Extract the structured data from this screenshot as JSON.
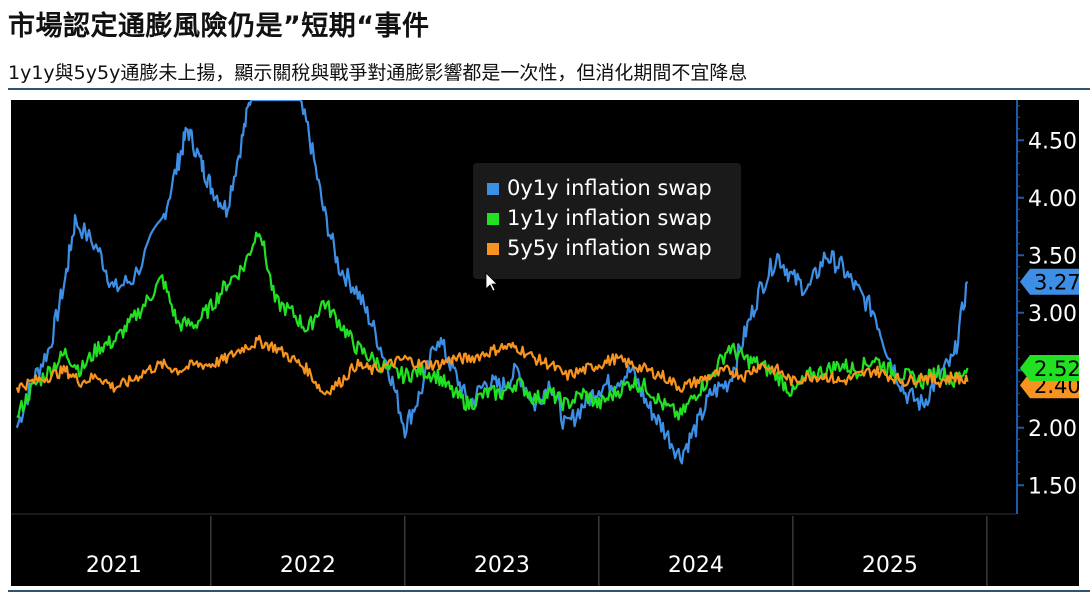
{
  "header": {
    "title": "市場認定通膨風險仍是”短期“事件",
    "subtitle": "1y1y與5y5y通膨未上揚，顯示關稅與戰爭對通膨影響都是一次性，但消化期間不宜降息"
  },
  "colors": {
    "background": "#000000",
    "axis": "#1e5aa8",
    "text": "#ffffff",
    "legend_bg": "#1a1a1a"
  },
  "chart_data": {
    "type": "line",
    "title": "",
    "xlabel": "",
    "ylabel": "",
    "x_tick_labels": [
      "2021",
      "2022",
      "2023",
      "2024",
      "2025"
    ],
    "y_ticks": [
      "1.50",
      "2.00",
      "2.50",
      "3.00",
      "3.50",
      "4.00",
      "4.50"
    ],
    "ylim": [
      1.25,
      4.85
    ],
    "grid": false,
    "legend_position": "top-center",
    "series": [
      {
        "name": "0y1y inflation swap",
        "color": "#3d8fe6",
        "last_label": "3.27",
        "points": [
          [
            2021.0,
            2.0
          ],
          [
            2021.08,
            2.4
          ],
          [
            2021.17,
            2.7
          ],
          [
            2021.25,
            3.3
          ],
          [
            2021.3,
            3.8
          ],
          [
            2021.42,
            3.55
          ],
          [
            2021.5,
            3.2
          ],
          [
            2021.6,
            3.3
          ],
          [
            2021.75,
            3.8
          ],
          [
            2021.83,
            4.3
          ],
          [
            2021.88,
            4.6
          ],
          [
            2021.95,
            4.3
          ],
          [
            2022.0,
            4.1
          ],
          [
            2022.08,
            3.9
          ],
          [
            2022.16,
            4.5
          ],
          [
            2022.22,
            5.0
          ],
          [
            2022.33,
            5.0
          ],
          [
            2022.42,
            5.0
          ],
          [
            2022.5,
            4.6
          ],
          [
            2022.58,
            3.9
          ],
          [
            2022.66,
            3.4
          ],
          [
            2022.75,
            3.2
          ],
          [
            2022.83,
            2.9
          ],
          [
            2022.92,
            2.5
          ],
          [
            2023.0,
            2.0
          ],
          [
            2023.08,
            2.3
          ],
          [
            2023.17,
            2.8
          ],
          [
            2023.25,
            2.5
          ],
          [
            2023.33,
            2.2
          ],
          [
            2023.42,
            2.4
          ],
          [
            2023.5,
            2.35
          ],
          [
            2023.58,
            2.5
          ],
          [
            2023.67,
            2.2
          ],
          [
            2023.75,
            2.4
          ],
          [
            2023.83,
            2.0
          ],
          [
            2023.92,
            2.2
          ],
          [
            2024.0,
            2.35
          ],
          [
            2024.08,
            2.4
          ],
          [
            2024.17,
            2.5
          ],
          [
            2024.25,
            2.2
          ],
          [
            2024.33,
            2.0
          ],
          [
            2024.42,
            1.75
          ],
          [
            2024.5,
            2.0
          ],
          [
            2024.58,
            2.3
          ],
          [
            2024.67,
            2.4
          ],
          [
            2024.75,
            2.8
          ],
          [
            2024.83,
            3.2
          ],
          [
            2024.92,
            3.5
          ],
          [
            2025.0,
            3.3
          ],
          [
            2025.08,
            3.2
          ],
          [
            2025.17,
            3.5
          ],
          [
            2025.25,
            3.4
          ],
          [
            2025.33,
            3.2
          ],
          [
            2025.42,
            3.0
          ],
          [
            2025.5,
            2.6
          ],
          [
            2025.58,
            2.3
          ],
          [
            2025.67,
            2.2
          ],
          [
            2025.75,
            2.45
          ],
          [
            2025.83,
            2.6
          ],
          [
            2025.9,
            3.27
          ]
        ]
      },
      {
        "name": "1y1y inflation swap",
        "color": "#22e022",
        "last_label": "2.52",
        "points": [
          [
            2021.0,
            2.1
          ],
          [
            2021.08,
            2.35
          ],
          [
            2021.17,
            2.5
          ],
          [
            2021.25,
            2.65
          ],
          [
            2021.33,
            2.5
          ],
          [
            2021.42,
            2.7
          ],
          [
            2021.5,
            2.75
          ],
          [
            2021.58,
            2.9
          ],
          [
            2021.67,
            3.1
          ],
          [
            2021.75,
            3.3
          ],
          [
            2021.83,
            2.9
          ],
          [
            2021.92,
            2.9
          ],
          [
            2022.0,
            3.05
          ],
          [
            2022.08,
            3.25
          ],
          [
            2022.17,
            3.4
          ],
          [
            2022.25,
            3.75
          ],
          [
            2022.33,
            3.1
          ],
          [
            2022.42,
            3.0
          ],
          [
            2022.5,
            2.85
          ],
          [
            2022.58,
            3.1
          ],
          [
            2022.67,
            2.9
          ],
          [
            2022.75,
            2.7
          ],
          [
            2022.83,
            2.6
          ],
          [
            2022.92,
            2.5
          ],
          [
            2023.0,
            2.45
          ],
          [
            2023.08,
            2.5
          ],
          [
            2023.17,
            2.45
          ],
          [
            2023.25,
            2.3
          ],
          [
            2023.33,
            2.2
          ],
          [
            2023.42,
            2.3
          ],
          [
            2023.5,
            2.3
          ],
          [
            2023.58,
            2.4
          ],
          [
            2023.67,
            2.25
          ],
          [
            2023.75,
            2.3
          ],
          [
            2023.83,
            2.2
          ],
          [
            2023.92,
            2.3
          ],
          [
            2024.0,
            2.2
          ],
          [
            2024.08,
            2.3
          ],
          [
            2024.17,
            2.4
          ],
          [
            2024.25,
            2.35
          ],
          [
            2024.33,
            2.2
          ],
          [
            2024.42,
            2.1
          ],
          [
            2024.5,
            2.3
          ],
          [
            2024.58,
            2.45
          ],
          [
            2024.67,
            2.7
          ],
          [
            2024.75,
            2.6
          ],
          [
            2024.83,
            2.55
          ],
          [
            2024.92,
            2.45
          ],
          [
            2025.0,
            2.3
          ],
          [
            2025.08,
            2.45
          ],
          [
            2025.17,
            2.5
          ],
          [
            2025.25,
            2.55
          ],
          [
            2025.33,
            2.5
          ],
          [
            2025.42,
            2.6
          ],
          [
            2025.5,
            2.5
          ],
          [
            2025.58,
            2.45
          ],
          [
            2025.67,
            2.4
          ],
          [
            2025.75,
            2.5
          ],
          [
            2025.83,
            2.4
          ],
          [
            2025.9,
            2.52
          ]
        ]
      },
      {
        "name": "5y5y inflation swap",
        "color": "#f7931e",
        "last_label": "2.40",
        "points": [
          [
            2021.0,
            2.35
          ],
          [
            2021.08,
            2.4
          ],
          [
            2021.17,
            2.45
          ],
          [
            2021.25,
            2.5
          ],
          [
            2021.33,
            2.4
          ],
          [
            2021.42,
            2.45
          ],
          [
            2021.5,
            2.35
          ],
          [
            2021.58,
            2.4
          ],
          [
            2021.67,
            2.5
          ],
          [
            2021.75,
            2.55
          ],
          [
            2021.83,
            2.5
          ],
          [
            2021.92,
            2.55
          ],
          [
            2022.0,
            2.55
          ],
          [
            2022.08,
            2.6
          ],
          [
            2022.17,
            2.7
          ],
          [
            2022.25,
            2.75
          ],
          [
            2022.33,
            2.7
          ],
          [
            2022.42,
            2.6
          ],
          [
            2022.5,
            2.5
          ],
          [
            2022.58,
            2.3
          ],
          [
            2022.67,
            2.4
          ],
          [
            2022.75,
            2.55
          ],
          [
            2022.83,
            2.5
          ],
          [
            2022.92,
            2.55
          ],
          [
            2023.0,
            2.6
          ],
          [
            2023.08,
            2.55
          ],
          [
            2023.17,
            2.55
          ],
          [
            2023.25,
            2.6
          ],
          [
            2023.33,
            2.6
          ],
          [
            2023.42,
            2.65
          ],
          [
            2023.5,
            2.7
          ],
          [
            2023.58,
            2.7
          ],
          [
            2023.67,
            2.6
          ],
          [
            2023.75,
            2.55
          ],
          [
            2023.83,
            2.45
          ],
          [
            2023.92,
            2.5
          ],
          [
            2024.0,
            2.55
          ],
          [
            2024.08,
            2.6
          ],
          [
            2024.17,
            2.55
          ],
          [
            2024.25,
            2.5
          ],
          [
            2024.33,
            2.45
          ],
          [
            2024.42,
            2.35
          ],
          [
            2024.5,
            2.4
          ],
          [
            2024.58,
            2.45
          ],
          [
            2024.67,
            2.5
          ],
          [
            2024.75,
            2.45
          ],
          [
            2024.83,
            2.55
          ],
          [
            2024.92,
            2.5
          ],
          [
            2025.0,
            2.4
          ],
          [
            2025.08,
            2.45
          ],
          [
            2025.17,
            2.45
          ],
          [
            2025.25,
            2.4
          ],
          [
            2025.33,
            2.45
          ],
          [
            2025.42,
            2.5
          ],
          [
            2025.5,
            2.45
          ],
          [
            2025.58,
            2.4
          ],
          [
            2025.67,
            2.45
          ],
          [
            2025.75,
            2.4
          ],
          [
            2025.83,
            2.45
          ],
          [
            2025.9,
            2.4
          ]
        ]
      }
    ]
  }
}
